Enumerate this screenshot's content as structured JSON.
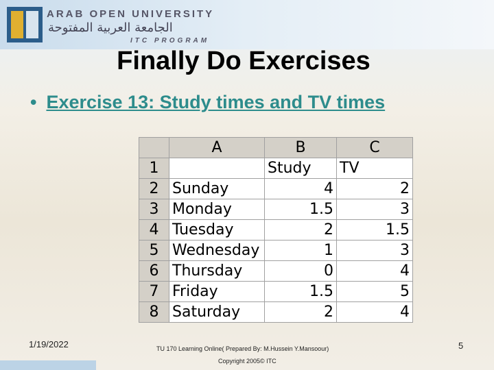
{
  "header": {
    "university": "ARAB OPEN UNIVERSITY",
    "arabic": "الجامعة العربية المفتوحة",
    "program": "ITC PROGRAM"
  },
  "title": "Finally Do Exercises",
  "bullet": "Exercise 13: Study times and TV times",
  "table": {
    "columns": [
      "A",
      "B",
      "C"
    ],
    "rows": [
      {
        "n": 1,
        "cells": [
          null,
          "Study",
          "TV"
        ]
      },
      {
        "n": 2,
        "cells": [
          "Sunday",
          4,
          2
        ]
      },
      {
        "n": 3,
        "cells": [
          "Monday",
          1.5,
          3
        ]
      },
      {
        "n": 4,
        "cells": [
          "Tuesday",
          2,
          1.5
        ]
      },
      {
        "n": 5,
        "cells": [
          "Wednesday",
          1,
          3
        ]
      },
      {
        "n": 6,
        "cells": [
          "Thursday",
          0,
          4
        ]
      },
      {
        "n": 7,
        "cells": [
          "Friday",
          1.5,
          5
        ]
      },
      {
        "n": 8,
        "cells": [
          "Saturday",
          2,
          4
        ]
      }
    ]
  },
  "footer": {
    "date": "1/19/2022",
    "course": "TU 170 Learning Online( Prepared By: M.Hussein Y.Mansoour)",
    "copyright": "Copyright 2005© ITC",
    "page": "5"
  }
}
